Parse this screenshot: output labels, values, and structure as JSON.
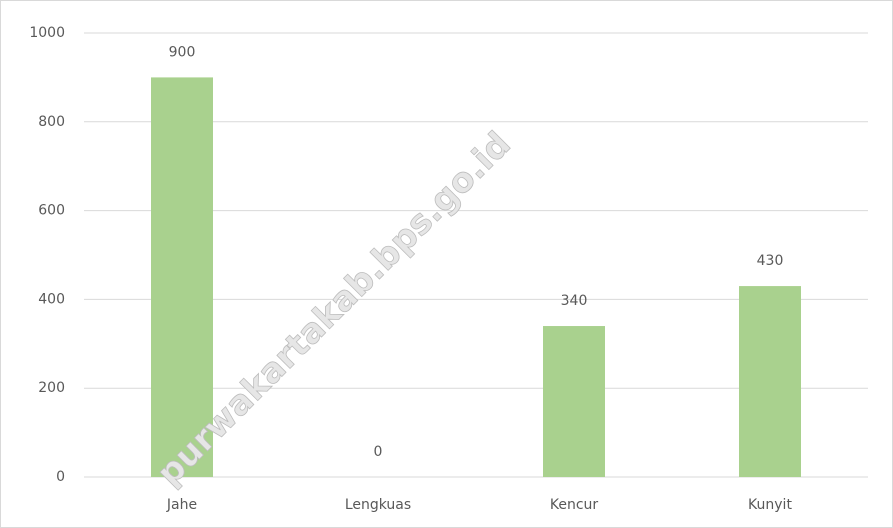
{
  "chart_data": {
    "type": "bar",
    "categories": [
      "Jahe",
      "Lengkuas",
      "Kencur",
      "Kunyit"
    ],
    "values": [
      900,
      0,
      340,
      430
    ],
    "color": "#a9d18e",
    "ylim": [
      0,
      1000
    ],
    "yticks": [
      0,
      200,
      400,
      600,
      800,
      1000
    ],
    "grid": true,
    "data_labels": true,
    "watermark": "purwakartakab.bps.go.id"
  }
}
